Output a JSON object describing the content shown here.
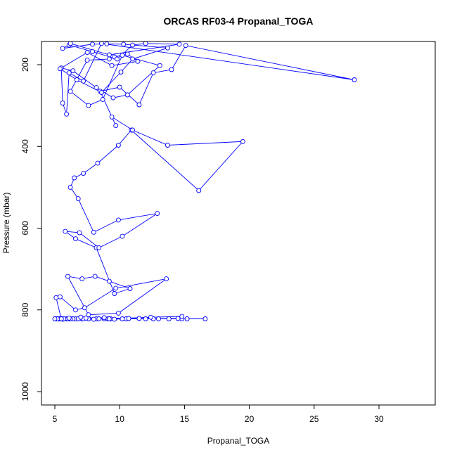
{
  "chart_data": {
    "type": "line",
    "title": "ORCAS RF03-4 Propanal_TOGA",
    "xlabel": "Propanal_TOGA",
    "ylabel": "Pressure (mbar)",
    "xlim": [
      4.2,
      34.6
    ],
    "ylim": [
      1030,
      150
    ],
    "y_reversed": true,
    "grid": false,
    "legend": "none",
    "series_color": "#0000ff",
    "x_ticks": [
      5,
      10,
      15,
      20,
      25,
      30
    ],
    "y_ticks": [
      200,
      400,
      600,
      800,
      1000
    ],
    "x_tick_labels": [
      "5",
      "10",
      "15",
      "20",
      "25",
      "30"
    ],
    "y_tick_labels": [
      "200",
      "400",
      "600",
      "800",
      "1000"
    ],
    "series": [
      {
        "x": [
          5.1,
          5.3,
          5.6,
          5.9,
          6.2,
          6.6,
          7.1,
          7.6,
          8.2,
          9.3,
          10.5,
          12.0,
          13.8,
          14.8,
          16.6,
          15.2,
          13.0,
          11.5,
          10.2,
          9.6,
          9.1,
          8.8,
          8.4,
          8.0,
          7.6,
          7.2,
          6.8,
          6.4,
          6.0,
          5.7,
          5.4,
          5.2,
          5.0,
          5.5,
          6.2,
          7.4,
          8.8,
          10.7,
          12.6,
          14.5,
          14.8,
          12.4,
          9.2,
          7.0,
          6.1,
          5.5,
          5.1,
          5.4,
          6.6,
          7.3,
          9.7,
          13.6,
          9.9,
          7.6,
          6.0,
          7.1,
          8.1,
          9.2,
          10.8,
          9.6,
          8.2,
          6.6,
          5.8,
          6.9,
          8.4,
          10.2,
          12.9,
          9.9,
          8.0,
          6.8,
          6.2,
          6.5,
          7.2,
          8.3,
          9.9,
          10.9,
          16.1,
          19.5,
          13.7,
          11.0,
          9.4,
          9.7,
          8.5,
          10.0,
          11.5,
          12.6,
          14.0,
          15.1,
          28.1,
          8.6,
          7.2,
          6.1,
          5.9,
          5.6,
          5.5,
          6.4,
          8.2,
          9.5,
          10.6,
          13.1,
          10.2,
          8.7,
          7.6,
          6.2,
          7.5,
          9.2,
          9.6,
          10.6,
          11.4,
          9.4,
          7.5,
          5.4,
          6.7,
          8.6,
          10.1,
          11.0,
          13.7,
          10.3,
          9.0,
          7.9,
          5.6,
          6.1,
          7.9,
          9.8,
          11.0,
          12.0,
          14.6,
          9.2,
          6.2
        ],
        "y": [
          822,
          822,
          823,
          822,
          822,
          822,
          822,
          822,
          822,
          822,
          822,
          822,
          822,
          822,
          822,
          822,
          822,
          821,
          822,
          823,
          822,
          822,
          822,
          823,
          822,
          822,
          822,
          822,
          822,
          822,
          822,
          822,
          822,
          821,
          822,
          820,
          819,
          821,
          822,
          821,
          816,
          818,
          822,
          818,
          820,
          822,
          770,
          768,
          800,
          795,
          747,
          724,
          808,
          812,
          718,
          724,
          718,
          730,
          748,
          760,
          648,
          626,
          608,
          611,
          648,
          620,
          564,
          580,
          610,
          528,
          500,
          477,
          466,
          441,
          397,
          360,
          508,
          388,
          397,
          360,
          328,
          349,
          265,
          255,
          298,
          220,
          212,
          153,
          237,
          148,
          240,
          220,
          321,
          294,
          208,
          215,
          256,
          281,
          274,
          202,
          177,
          285,
          300,
          265,
          189,
          186,
          181,
          174,
          192,
          202,
          170,
          210,
          237,
          268,
          218,
          186,
          159,
          150,
          149,
          150,
          160,
          152,
          168,
          186,
          152,
          148,
          150,
          176,
          148
        ]
      }
    ]
  }
}
